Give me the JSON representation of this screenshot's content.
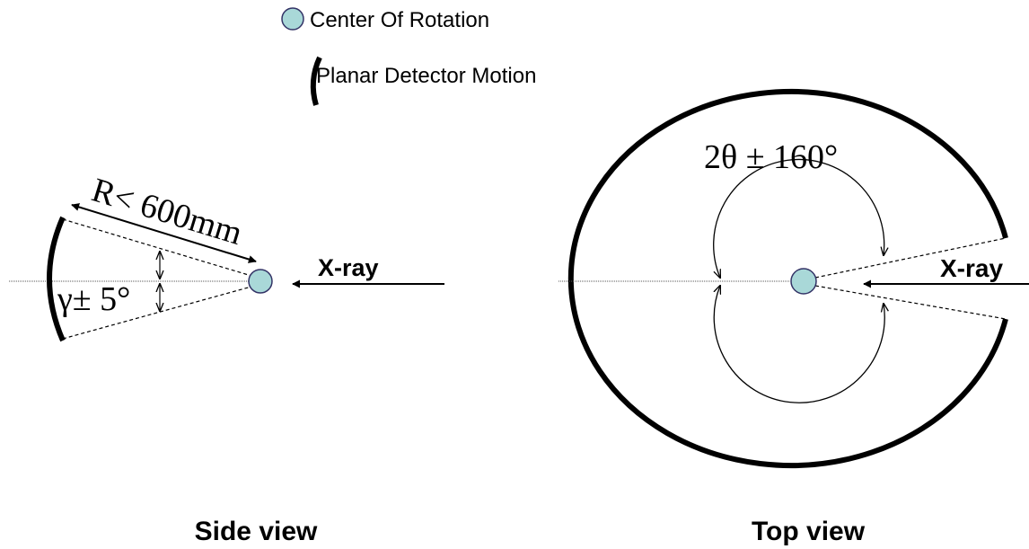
{
  "legend": {
    "items": [
      {
        "label": "Center Of Rotation"
      },
      {
        "label": "Planar Detector Motion"
      }
    ]
  },
  "side_view": {
    "caption": "Side view",
    "radius_label": "R< 600mm",
    "tilt_label": "γ± 5°",
    "beam_label": "X-ray"
  },
  "top_view": {
    "caption": "Top view",
    "angle_label": "2θ ± 160°",
    "beam_label": "X-ray"
  }
}
